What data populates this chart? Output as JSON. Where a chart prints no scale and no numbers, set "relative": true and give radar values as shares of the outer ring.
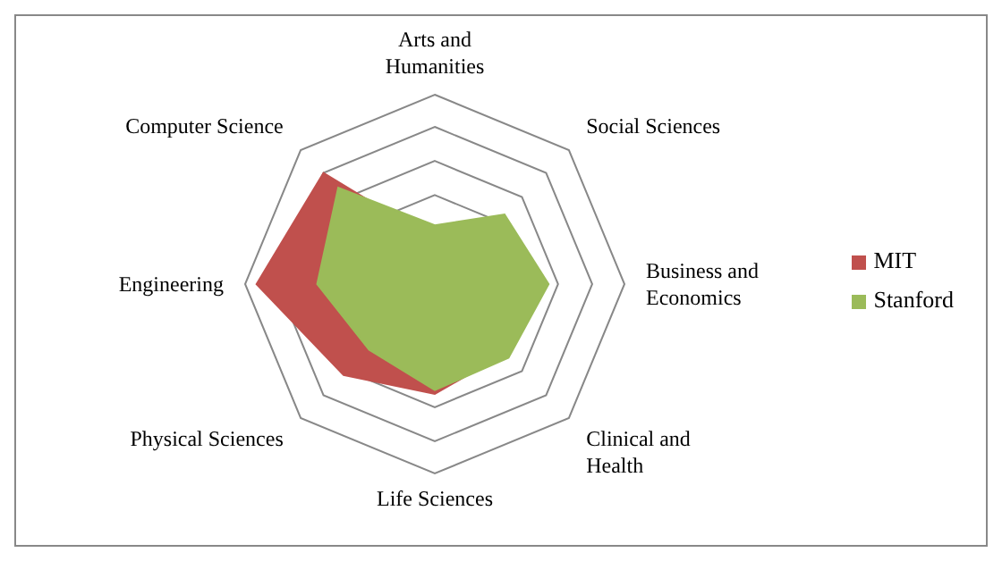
{
  "chart_data": {
    "type": "radar",
    "relative": true,
    "categories": [
      "Arts and Humanities",
      "Social Sciences",
      "Business and Economics",
      "Clinical and Health",
      "Life Sciences",
      "Physical Sciences",
      "Engineering",
      "Computer Science"
    ],
    "series": [
      {
        "name": "MIT",
        "color": "#c0504d",
        "values": [
          0.23,
          0.45,
          0.5,
          0.52,
          0.58,
          0.68,
          0.94,
          0.83
        ]
      },
      {
        "name": "Stanford",
        "color": "#9bbb59",
        "values": [
          0.31,
          0.52,
          0.6,
          0.55,
          0.56,
          0.49,
          0.62,
          0.72
        ]
      }
    ],
    "legend": "right",
    "grid": true
  }
}
